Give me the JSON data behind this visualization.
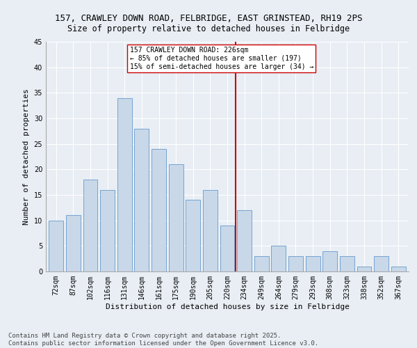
{
  "title": "157, CRAWLEY DOWN ROAD, FELBRIDGE, EAST GRINSTEAD, RH19 2PS",
  "subtitle": "Size of property relative to detached houses in Felbridge",
  "xlabel": "Distribution of detached houses by size in Felbridge",
  "ylabel": "Number of detached properties",
  "categories": [
    "72sqm",
    "87sqm",
    "102sqm",
    "116sqm",
    "131sqm",
    "146sqm",
    "161sqm",
    "175sqm",
    "190sqm",
    "205sqm",
    "220sqm",
    "234sqm",
    "249sqm",
    "264sqm",
    "279sqm",
    "293sqm",
    "308sqm",
    "323sqm",
    "338sqm",
    "352sqm",
    "367sqm"
  ],
  "values": [
    10,
    11,
    18,
    16,
    34,
    28,
    24,
    21,
    14,
    16,
    9,
    12,
    3,
    5,
    3,
    3,
    4,
    3,
    1,
    3,
    1
  ],
  "bar_color": "#c8d8e8",
  "bar_edge_color": "#6699cc",
  "highlight_line_index": 10,
  "highlight_color": "#cc0000",
  "annotation_text": "157 CRAWLEY DOWN ROAD: 226sqm\n← 85% of detached houses are smaller (197)\n15% of semi-detached houses are larger (34) →",
  "annotation_box_color": "#ffffff",
  "annotation_box_edge": "#cc0000",
  "ylim": [
    0,
    45
  ],
  "yticks": [
    0,
    5,
    10,
    15,
    20,
    25,
    30,
    35,
    40,
    45
  ],
  "bg_color": "#e8eef4",
  "plot_bg_color": "#e8eef4",
  "footer": "Contains HM Land Registry data © Crown copyright and database right 2025.\nContains public sector information licensed under the Open Government Licence v3.0.",
  "title_fontsize": 9,
  "axis_label_fontsize": 8,
  "tick_fontsize": 7,
  "annotation_fontsize": 7,
  "footer_fontsize": 6.5
}
